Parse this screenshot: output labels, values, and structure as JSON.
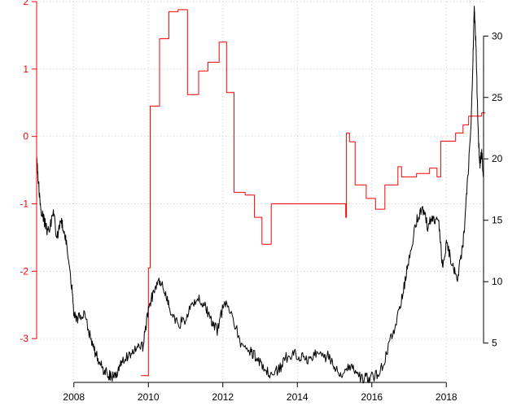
{
  "chart_data": {
    "type": "line",
    "title": "",
    "xlabel": "",
    "ylabel_left": "",
    "ylabel_right": "",
    "grid": true,
    "x_range": [
      2007.0,
      2019.0
    ],
    "x_ticks": [
      2008,
      2010,
      2012,
      2014,
      2016,
      2018
    ],
    "y_left_range": [
      -3.65,
      2.0
    ],
    "y_left_ticks": [
      -3,
      -2,
      -1,
      0,
      1,
      2
    ],
    "y_right_range": [
      1.8,
      32.8
    ],
    "y_right_ticks": [
      5,
      10,
      15,
      20,
      25,
      30
    ],
    "colors": {
      "left_axis": "#ff0000",
      "right_axis": "#000000",
      "grid": "#cccccc"
    },
    "series": [
      {
        "axis": "left",
        "color": "#ff0000",
        "shape": "step",
        "x": [
          2009.8,
          2010.0,
          2010.05,
          2010.3,
          2010.55,
          2010.8,
          2011.05,
          2011.35,
          2011.6,
          2011.9,
          2012.1,
          2012.3,
          2012.6,
          2012.85,
          2013.05,
          2013.3,
          2014.8,
          2015.3,
          2015.32,
          2015.4,
          2015.55,
          2015.85,
          2016.1,
          2016.35,
          2016.7,
          2016.8,
          2016.95,
          2017.2,
          2017.35,
          2017.55,
          2017.75,
          2017.85,
          2018.05,
          2018.25,
          2018.45,
          2018.6,
          2018.8,
          2018.95,
          2019.05
        ],
        "y": [
          -3.55,
          -1.95,
          0.45,
          1.45,
          1.85,
          1.88,
          0.62,
          0.97,
          1.1,
          1.4,
          0.65,
          -0.83,
          -0.87,
          -1.2,
          -1.6,
          -1.0,
          -1.0,
          -1.2,
          0.05,
          -0.08,
          -0.72,
          -0.92,
          -1.08,
          -0.72,
          -0.45,
          -0.6,
          -0.6,
          -0.55,
          -0.55,
          -0.47,
          -0.6,
          -0.07,
          -0.07,
          0.05,
          0.17,
          0.3,
          0.3,
          0.35,
          0.35
        ]
      },
      {
        "axis": "right",
        "color": "#000000",
        "shape": "line",
        "x": [
          2007.0,
          2007.03,
          2007.1,
          2007.2,
          2007.3,
          2007.45,
          2007.55,
          2007.65,
          2007.75,
          2007.85,
          2007.95,
          2008.0,
          2008.1,
          2008.25,
          2008.45,
          2008.6,
          2008.75,
          2008.9,
          2009.0,
          2009.15,
          2009.3,
          2009.5,
          2009.7,
          2009.85,
          2010.0,
          2010.15,
          2010.3,
          2010.45,
          2010.6,
          2010.8,
          2011.0,
          2011.2,
          2011.4,
          2011.55,
          2011.7,
          2011.85,
          2012.05,
          2012.25,
          2012.5,
          2012.75,
          2012.9,
          2013.1,
          2013.3,
          2013.5,
          2013.7,
          2013.9,
          2014.1,
          2014.3,
          2014.5,
          2014.7,
          2014.85,
          2015.0,
          2015.2,
          2015.4,
          2015.6,
          2015.75,
          2015.9,
          2016.1,
          2016.3,
          2016.5,
          2016.7,
          2016.85,
          2017.0,
          2017.2,
          2017.35,
          2017.5,
          2017.65,
          2017.8,
          2017.9,
          2018.0,
          2018.15,
          2018.3,
          2018.45,
          2018.55,
          2018.65,
          2018.7,
          2018.75,
          2018.8,
          2018.85,
          2018.9,
          2018.95,
          2019.0
        ],
        "y": [
          20,
          19,
          16,
          15,
          14,
          15.5,
          13.5,
          15,
          14,
          12,
          9.5,
          7.5,
          7,
          7.5,
          5.5,
          4,
          3,
          2.5,
          2.3,
          2.5,
          3.4,
          4.2,
          4.5,
          4.7,
          7.7,
          9.3,
          10,
          9.2,
          7.5,
          6.5,
          7,
          8.2,
          8.6,
          7.8,
          6.7,
          6,
          8.5,
          7.3,
          4.7,
          4.3,
          3.9,
          2.8,
          2.4,
          2.8,
          3.8,
          4.2,
          3.9,
          3.7,
          4.2,
          3.8,
          4.0,
          3.0,
          2.6,
          3.2,
          2.6,
          2.1,
          2.2,
          2.3,
          3.2,
          5.2,
          7.2,
          9.3,
          12.0,
          15.0,
          16.0,
          14.5,
          15.3,
          14.8,
          11.0,
          13.2,
          11.5,
          10.2,
          13.0,
          17.2,
          22.0,
          26.0,
          32.5,
          29.0,
          22.5,
          19.5,
          20.5,
          18.5
        ]
      }
    ]
  }
}
